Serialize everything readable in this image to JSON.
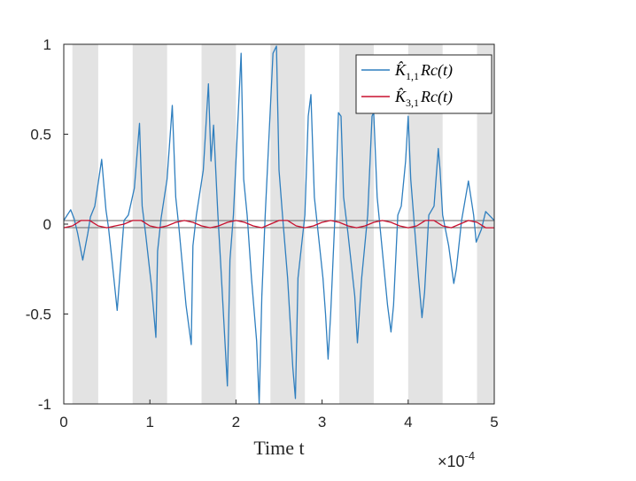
{
  "chart_data": {
    "type": "line",
    "title": "",
    "xlabel": "Time t",
    "ylabel": "",
    "xlim": [
      0,
      5
    ],
    "ylim": [
      -1,
      1
    ],
    "x_scale_exponent": "×10",
    "x_scale_power": "-4",
    "x_ticks": [
      "0",
      "1",
      "2",
      "3",
      "4",
      "5"
    ],
    "y_ticks": [
      "-1",
      "-0.5",
      "0",
      "0.5",
      "1"
    ],
    "x_tick_values": [
      0,
      1,
      2,
      3,
      4,
      5
    ],
    "y_tick_values": [
      -1,
      -0.5,
      0,
      0.5,
      1
    ],
    "shaded_bands": [
      [
        0.1,
        0.4
      ],
      [
        0.8,
        1.2
      ],
      [
        1.6,
        2.0
      ],
      [
        2.4,
        2.8
      ],
      [
        3.2,
        3.6
      ],
      [
        4.0,
        4.4
      ],
      [
        4.8,
        5.0
      ]
    ],
    "legend_position": "top-right",
    "grid": false,
    "series": [
      {
        "name": "K̂₁,₁ Rc(t)",
        "legend_main": "K̂",
        "legend_sub": "1,1",
        "legend_rest": "Rc(t)",
        "color": "#2f7fbf",
        "x": [
          0,
          0.08,
          0.12,
          0.16,
          0.22,
          0.28,
          0.31,
          0.36,
          0.44,
          0.49,
          0.52,
          0.56,
          0.62,
          0.68,
          0.7,
          0.75,
          0.82,
          0.88,
          0.91,
          0.95,
          1.02,
          1.07,
          1.09,
          1.13,
          1.2,
          1.26,
          1.3,
          1.34,
          1.42,
          1.48,
          1.5,
          1.54,
          1.62,
          1.68,
          1.71,
          1.74,
          1.79,
          1.82,
          1.86,
          1.9,
          1.93,
          1.97,
          2.06,
          2.09,
          2.13,
          2.18,
          2.24,
          2.27,
          2.3,
          2.34,
          2.43,
          2.47,
          2.5,
          2.54,
          2.6,
          2.66,
          2.69,
          2.72,
          2.8,
          2.84,
          2.87,
          2.91,
          3.01,
          3.04,
          3.07,
          3.1,
          3.15,
          3.19,
          3.22,
          3.25,
          3.3,
          3.38,
          3.41,
          3.46,
          3.53,
          3.58,
          3.6,
          3.64,
          3.76,
          3.8,
          3.83,
          3.88,
          3.92,
          3.97,
          4.0,
          4.03,
          4.12,
          4.16,
          4.19,
          4.24,
          4.3,
          4.35,
          4.37,
          4.4,
          4.47,
          4.53,
          4.56,
          4.62,
          4.7,
          4.76,
          4.79,
          4.85,
          4.9,
          5.0
        ],
        "y": [
          0.02,
          0.08,
          0.03,
          -0.05,
          -0.2,
          -0.05,
          0.04,
          0.1,
          0.36,
          0.08,
          -0.02,
          -0.2,
          -0.48,
          -0.1,
          0.02,
          0.05,
          0.2,
          0.56,
          0.1,
          -0.05,
          -0.35,
          -0.63,
          -0.15,
          0.03,
          0.25,
          0.66,
          0.15,
          -0.03,
          -0.45,
          -0.67,
          -0.12,
          0.05,
          0.3,
          0.78,
          0.35,
          0.55,
          0.05,
          -0.2,
          -0.55,
          -0.9,
          -0.2,
          0.05,
          0.95,
          0.25,
          0.05,
          -0.3,
          -0.65,
          -1.0,
          -0.4,
          0.05,
          0.95,
          0.99,
          0.3,
          0.05,
          -0.3,
          -0.8,
          -0.97,
          -0.3,
          0.05,
          0.6,
          0.72,
          0.15,
          -0.3,
          -0.5,
          -0.75,
          -0.5,
          0.05,
          0.62,
          0.6,
          0.15,
          -0.05,
          -0.4,
          -0.66,
          -0.3,
          0.05,
          0.6,
          0.62,
          0.15,
          -0.45,
          -0.6,
          -0.45,
          0.05,
          0.1,
          0.35,
          0.6,
          0.25,
          -0.3,
          -0.52,
          -0.38,
          0.05,
          0.1,
          0.42,
          0.3,
          0.05,
          -0.12,
          -0.33,
          -0.25,
          0.02,
          0.24,
          0.05,
          -0.1,
          -0.03,
          0.07,
          0.02
        ]
      },
      {
        "name": "K̂₃,₁ Rc(t)",
        "legend_main": "K̂",
        "legend_sub": "3,1",
        "legend_rest": "Rc(t)",
        "color": "#c8102e",
        "x": [
          0,
          0.1,
          0.2,
          0.3,
          0.4,
          0.5,
          0.6,
          0.7,
          0.8,
          0.9,
          1.0,
          1.1,
          1.2,
          1.3,
          1.4,
          1.5,
          1.6,
          1.7,
          1.8,
          1.9,
          2.0,
          2.1,
          2.2,
          2.3,
          2.4,
          2.5,
          2.6,
          2.7,
          2.8,
          2.9,
          3.0,
          3.1,
          3.2,
          3.3,
          3.4,
          3.5,
          3.6,
          3.7,
          3.8,
          3.9,
          4.0,
          4.1,
          4.2,
          4.3,
          4.4,
          4.5,
          4.6,
          4.7,
          4.8,
          4.9,
          5.0
        ],
        "y": [
          -0.02,
          -0.01,
          0.02,
          0.02,
          -0.01,
          -0.02,
          -0.01,
          0.0,
          0.02,
          0.02,
          -0.01,
          -0.02,
          -0.01,
          0.01,
          0.02,
          0.01,
          -0.01,
          -0.02,
          -0.01,
          0.01,
          0.02,
          0.01,
          -0.01,
          -0.02,
          0.0,
          0.02,
          0.02,
          -0.01,
          -0.02,
          -0.01,
          0.01,
          0.02,
          0.01,
          -0.01,
          -0.02,
          -0.01,
          0.01,
          0.02,
          0.01,
          -0.01,
          -0.02,
          -0.01,
          0.02,
          0.02,
          -0.01,
          -0.02,
          0.0,
          0.02,
          0.01,
          -0.02,
          -0.02
        ]
      }
    ]
  }
}
